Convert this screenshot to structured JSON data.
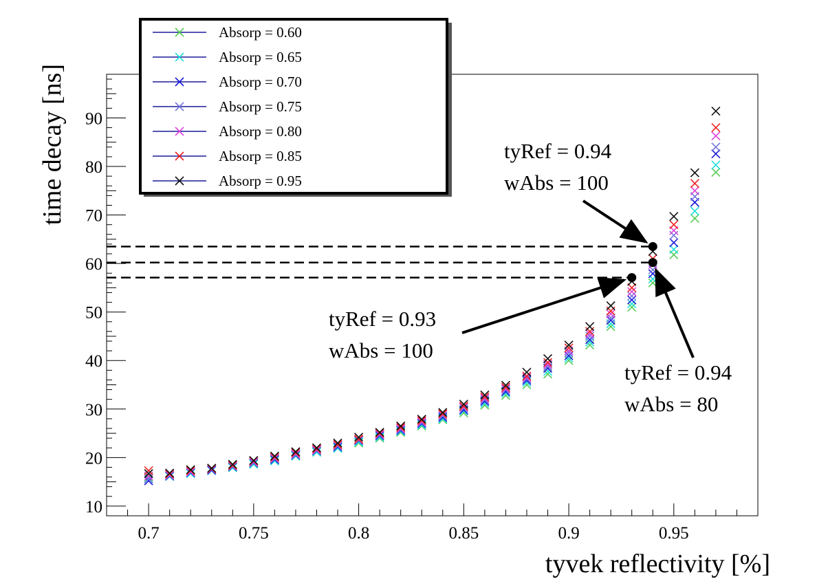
{
  "chart_data": {
    "type": "scatter",
    "xlabel": "tyvek reflectivity [%]",
    "ylabel": "time decay [ns]",
    "xlim": [
      0.68,
      0.99
    ],
    "ylim": [
      8,
      99
    ],
    "xticks": [
      0.7,
      0.75,
      0.8,
      0.85,
      0.9,
      0.95
    ],
    "xtick_labels": [
      "0.7",
      "0.75",
      "0.8",
      "0.85",
      "0.9",
      "0.95"
    ],
    "yticks": [
      10,
      20,
      30,
      40,
      50,
      60,
      70,
      80,
      90
    ],
    "ytick_labels": [
      "10",
      "20",
      "30",
      "40",
      "50",
      "60",
      "70",
      "80",
      "90"
    ],
    "legend_position": "top-left",
    "x": [
      0.7,
      0.71,
      0.72,
      0.73,
      0.74,
      0.75,
      0.76,
      0.77,
      0.78,
      0.79,
      0.8,
      0.81,
      0.82,
      0.83,
      0.84,
      0.85,
      0.86,
      0.87,
      0.88,
      0.89,
      0.9,
      0.91,
      0.92,
      0.93,
      0.94,
      0.95,
      0.96,
      0.97
    ],
    "series": [
      {
        "name": "Absorp = 0.60",
        "color": "#55cc55",
        "values": [
          16.0,
          16.3,
          16.8,
          17.4,
          18.0,
          18.8,
          19.5,
          20.3,
          21.2,
          22.0,
          23.0,
          24.0,
          25.2,
          26.5,
          27.8,
          29.2,
          30.8,
          32.8,
          35.0,
          37.2,
          40.0,
          43.2,
          47.0,
          51.0,
          56.0,
          61.8,
          69.3,
          78.8
        ]
      },
      {
        "name": "Absorp = 0.65",
        "color": "#22dddd",
        "values": [
          15.7,
          16.1,
          16.7,
          17.3,
          17.9,
          18.6,
          19.3,
          20.3,
          21.1,
          21.9,
          23.2,
          24.2,
          25.4,
          26.7,
          28.0,
          29.6,
          31.2,
          33.3,
          35.5,
          37.8,
          40.5,
          43.8,
          47.6,
          51.7,
          56.8,
          62.9,
          70.8,
          80.3
        ]
      },
      {
        "name": "Absorp = 0.70",
        "color": "#1a1add",
        "values": [
          15.2,
          16.2,
          16.9,
          17.4,
          18.1,
          18.9,
          19.6,
          20.5,
          21.4,
          22.2,
          23.5,
          24.5,
          25.6,
          27.0,
          28.3,
          29.8,
          31.6,
          33.6,
          35.9,
          38.4,
          41.0,
          44.3,
          48.3,
          52.5,
          57.9,
          64.3,
          72.6,
          82.6
        ]
      },
      {
        "name": "Absorp = 0.75",
        "color": "#7777dd",
        "values": [
          15.6,
          16.3,
          17.0,
          17.6,
          18.2,
          19.0,
          19.8,
          20.6,
          21.5,
          22.4,
          23.6,
          24.7,
          25.8,
          27.2,
          28.6,
          30.2,
          31.9,
          34.0,
          36.2,
          38.8,
          41.6,
          45.0,
          48.8,
          53.3,
          58.7,
          65.8,
          73.8,
          84.0
        ]
      },
      {
        "name": "Absorp = 0.80",
        "color": "#dd44dd",
        "values": [
          16.2,
          16.5,
          17.1,
          17.6,
          18.3,
          19.1,
          19.9,
          20.8,
          21.6,
          22.6,
          23.7,
          24.8,
          26.0,
          27.4,
          28.9,
          30.4,
          32.2,
          34.2,
          36.5,
          39.2,
          42.0,
          45.5,
          49.6,
          54.2,
          59.8,
          66.8,
          75.0,
          86.3
        ]
      },
      {
        "name": "Absorp = 0.85",
        "color": "#ee2222",
        "values": [
          17.3,
          16.6,
          17.3,
          17.7,
          18.4,
          19.3,
          20.1,
          21.0,
          21.8,
          22.7,
          23.8,
          25.0,
          26.2,
          27.6,
          29.0,
          30.6,
          32.5,
          34.5,
          36.8,
          39.6,
          42.6,
          46.0,
          50.2,
          55.0,
          61.0,
          68.0,
          76.5,
          88.0
        ]
      },
      {
        "name": "Absorp = 0.95",
        "color": "#111111",
        "values": [
          16.7,
          16.8,
          17.5,
          17.8,
          18.6,
          19.4,
          20.3,
          21.2,
          22.0,
          23.0,
          24.2,
          25.2,
          26.5,
          27.9,
          29.3,
          31.0,
          32.9,
          34.9,
          37.6,
          40.4,
          43.2,
          47.0,
          51.3,
          56.3,
          62.5,
          69.7,
          78.7,
          91.4
        ]
      }
    ],
    "highlights": [
      {
        "x": 0.93,
        "y": 57.1,
        "line1": "tyRef = 0.93",
        "line2": "wAbs = 100"
      },
      {
        "x": 0.94,
        "y": 60.2,
        "line1": "tyRef = 0.94",
        "line2": "wAbs = 80"
      },
      {
        "x": 0.94,
        "y": 63.5,
        "line1": "tyRef = 0.94",
        "line2": "wAbs = 100"
      }
    ]
  }
}
